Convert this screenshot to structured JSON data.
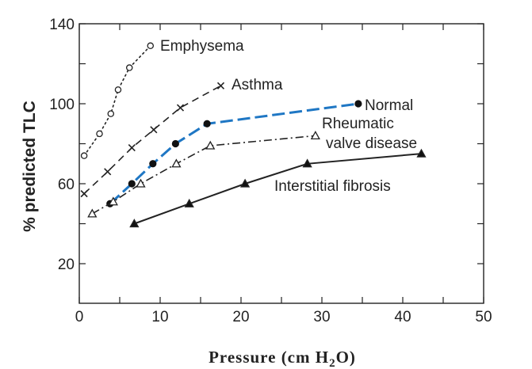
{
  "chart_data": {
    "type": "line",
    "xlabel": "Pressure (cm H2O)",
    "xlabel_parts": {
      "before": "Pressure (cm H",
      "sub": "2",
      "after": "O)"
    },
    "ylabel": "% predicted TLC",
    "xlim": [
      0,
      50
    ],
    "ylim": [
      20,
      140
    ],
    "xticks": [
      "0",
      "10",
      "20",
      "30",
      "40",
      "50"
    ],
    "yticks": [
      "20",
      "60",
      "100",
      "140"
    ],
    "grid": false,
    "series": [
      {
        "name": "Emphysema",
        "style": "dotted",
        "marker": "open-circle",
        "color": "#222222",
        "x": [
          0.6,
          2.5,
          3.9,
          4.8,
          6.2,
          8.8
        ],
        "y": [
          74,
          85,
          95,
          107,
          118,
          129
        ]
      },
      {
        "name": "Asthma",
        "style": "dashed",
        "marker": "x",
        "color": "#222222",
        "x": [
          0.6,
          3.5,
          6.5,
          9.2,
          12.5,
          17.5
        ],
        "y": [
          55,
          66,
          78,
          87,
          98,
          109
        ]
      },
      {
        "name": "Normal",
        "style": "dashed-blue",
        "marker": "filled-circle",
        "color": "#1f77c4",
        "x": [
          3.8,
          6.5,
          9.1,
          11.9,
          15.8,
          34.5
        ],
        "y": [
          50,
          60,
          70,
          80,
          90,
          100
        ]
      },
      {
        "name": "Rheumatic valve disease",
        "label_lines": [
          "Rheumatic",
          "valve disease"
        ],
        "style": "dash-dot",
        "marker": "open-triangle",
        "color": "#222222",
        "x": [
          1.6,
          4.2,
          7.6,
          12.0,
          16.2,
          29.2
        ],
        "y": [
          45,
          51,
          60,
          70,
          79,
          84
        ]
      },
      {
        "name": "Interstitial fibrosis",
        "style": "solid",
        "marker": "filled-triangle",
        "color": "#222222",
        "x": [
          6.8,
          13.6,
          20.5,
          28.2,
          42.3
        ],
        "y": [
          40,
          50,
          60,
          70,
          75
        ]
      }
    ]
  }
}
